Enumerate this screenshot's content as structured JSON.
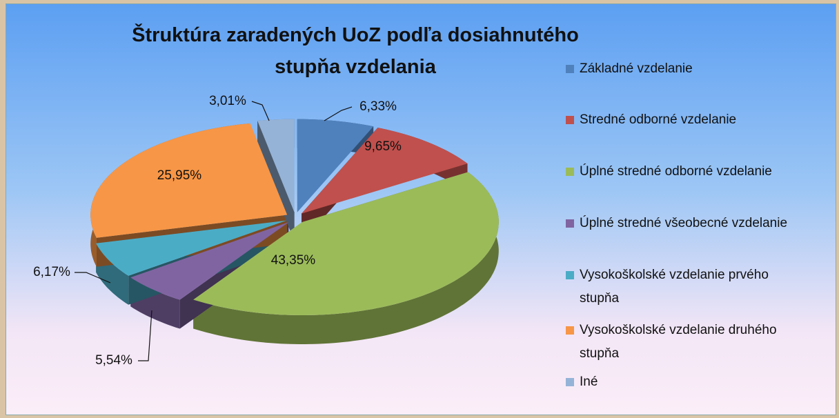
{
  "chart_data": {
    "type": "pie",
    "title": "Štruktúra zaradených UoZ podľa dosiahnutého stupňa vzdelania",
    "categories": [
      "Základné vzdelanie",
      "Stredné odborné vzdelanie",
      "Úplné stredné odborné vzdelanie",
      "Úplné stredné všeobecné vzdelanie",
      "Vysokoškolské vzdelanie prvého stupňa",
      "Vysokoškolské vzdelanie druhého stupňa",
      "Iné"
    ],
    "values": [
      6.33,
      9.65,
      43.35,
      5.54,
      6.17,
      25.95,
      3.01
    ],
    "value_labels": [
      "6,33%",
      "9,65%",
      "43,35%",
      "5,54%",
      "6,17%",
      "25,95%",
      "3,01%"
    ],
    "colors": [
      "#4f81bd",
      "#c0504d",
      "#9bbb59",
      "#8064a2",
      "#4bacc6",
      "#f79646",
      "#95b3d7"
    ],
    "legend": "right"
  }
}
